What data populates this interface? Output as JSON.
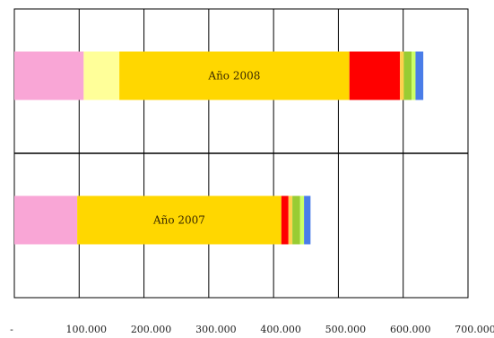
{
  "chart_data": {
    "type": "bar",
    "orientation": "horizontal",
    "stacked": true,
    "title": "",
    "xlabel": "",
    "ylabel": "",
    "xlim": [
      0,
      700000
    ],
    "grid": true,
    "legend": "none",
    "tick_labels": [
      "-",
      "100.000",
      "200.000",
      "300.000",
      "400.000",
      "500.000",
      "600.000",
      "700.000"
    ],
    "categories": [
      "Año 2008",
      "Año 2007"
    ],
    "series": [
      {
        "color": "#f9a6d6",
        "values": [
          107000,
          97000
        ]
      },
      {
        "color": "#ffff99",
        "values": [
          55000,
          0
        ]
      },
      {
        "color": "#ffd700",
        "values": [
          355000,
          315000
        ]
      },
      {
        "color": "#ff0000",
        "values": [
          78000,
          11000
        ]
      },
      {
        "color": "#ffd24d",
        "values": [
          6000,
          6000
        ]
      },
      {
        "color": "#99cc33",
        "values": [
          12000,
          12000
        ]
      },
      {
        "color": "#ccff66",
        "values": [
          6000,
          6000
        ]
      },
      {
        "color": "#4a7de8",
        "values": [
          12000,
          10000
        ]
      }
    ]
  }
}
